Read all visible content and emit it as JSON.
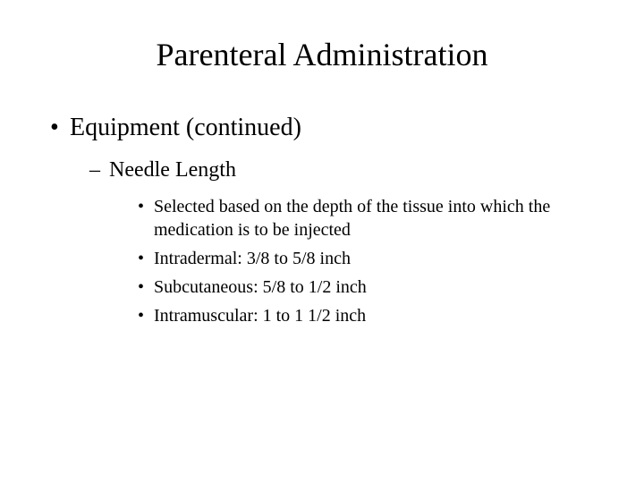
{
  "title": "Parenteral Administration",
  "level1": {
    "text": "Equipment (continued)"
  },
  "level2": {
    "text": "Needle Length"
  },
  "level3": {
    "items": [
      "Selected based on the depth of the tissue into which the medication is to be injected",
      "Intradermal: 3/8 to 5/8 inch",
      "Subcutaneous: 5/8 to 1/2 inch",
      "Intramuscular: 1 to 1 1/2 inch"
    ]
  },
  "styling": {
    "background_color": "#ffffff",
    "text_color": "#000000",
    "font_family": "Times New Roman",
    "title_fontsize": 36,
    "level1_fontsize": 28,
    "level2_fontsize": 24,
    "level3_fontsize": 20,
    "bullet_level1": "•",
    "bullet_level2": "–",
    "bullet_level3": "•"
  }
}
